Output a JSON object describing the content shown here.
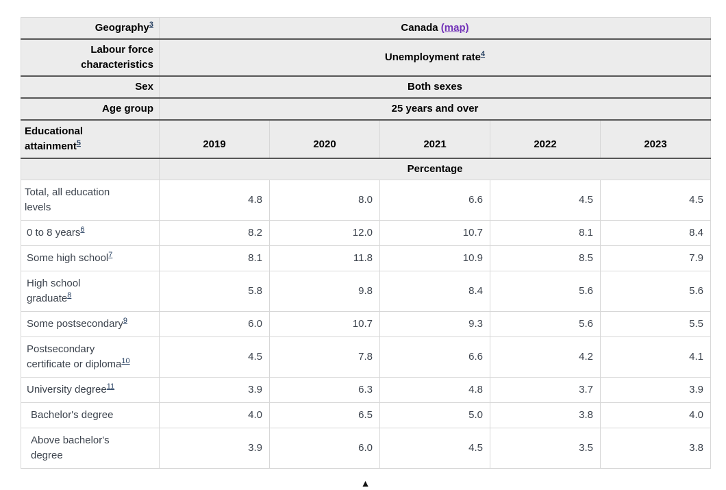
{
  "table": {
    "meta_rows": [
      {
        "label": "Geography",
        "footnote": "3",
        "value": "Canada",
        "value_link": "(map)"
      },
      {
        "label": "Labour force characteristics",
        "value": "Unemployment rate",
        "value_footnote": "4"
      },
      {
        "label": "Sex",
        "value": "Both sexes"
      },
      {
        "label": "Age group",
        "value": "25 years and over"
      }
    ],
    "column_header": {
      "label": "Educational attainment",
      "footnote": "5",
      "years": [
        "2019",
        "2020",
        "2021",
        "2022",
        "2023"
      ]
    },
    "unit_label": "Percentage",
    "rows": [
      {
        "label": "Total, all education levels",
        "values": [
          "4.8",
          "8.0",
          "6.6",
          "4.5",
          "4.5"
        ]
      },
      {
        "label": "0 to 8 years",
        "footnote": "6",
        "values": [
          "8.2",
          "12.0",
          "10.7",
          "8.1",
          "8.4"
        ]
      },
      {
        "label": "Some high school",
        "footnote": "7",
        "values": [
          "8.1",
          "11.8",
          "10.9",
          "8.5",
          "7.9"
        ]
      },
      {
        "label": "High school graduate",
        "footnote": "8",
        "values": [
          "5.8",
          "9.8",
          "8.4",
          "5.6",
          "5.6"
        ]
      },
      {
        "label": "Some postsecondary",
        "footnote": "9",
        "values": [
          "6.0",
          "10.7",
          "9.3",
          "5.6",
          "5.5"
        ]
      },
      {
        "label": "Postsecondary certificate or diploma",
        "footnote": "10",
        "values": [
          "4.5",
          "7.8",
          "6.6",
          "4.2",
          "4.1"
        ]
      },
      {
        "label": "University degree",
        "footnote": "11",
        "values": [
          "3.9",
          "6.3",
          "4.8",
          "3.7",
          "3.9"
        ]
      },
      {
        "label": "Bachelor's degree",
        "values": [
          "4.0",
          "6.5",
          "5.0",
          "3.8",
          "4.0"
        ]
      },
      {
        "label": "Above bachelor's degree",
        "values": [
          "3.9",
          "6.0",
          "4.5",
          "3.5",
          "3.8"
        ]
      }
    ]
  },
  "footer": {
    "back_to_top_icon": "▲"
  },
  "colors": {
    "header_bg": "#ececec",
    "dark_border": "#565656",
    "light_border": "#d7d7d7",
    "text": "#3c434d",
    "footnote_link": "#284162",
    "visited_link_purple": "#7232b8"
  },
  "chart_data": {
    "type": "table",
    "categories": [
      "2019",
      "2020",
      "2021",
      "2022",
      "2023"
    ],
    "unit": "Percentage",
    "series": [
      {
        "name": "Total, all education levels",
        "values": [
          4.8,
          8.0,
          6.6,
          4.5,
          4.5
        ]
      },
      {
        "name": "0 to 8 years",
        "values": [
          8.2,
          12.0,
          10.7,
          8.1,
          8.4
        ]
      },
      {
        "name": "Some high school",
        "values": [
          8.1,
          11.8,
          10.9,
          8.5,
          7.9
        ]
      },
      {
        "name": "High school graduate",
        "values": [
          5.8,
          9.8,
          8.4,
          5.6,
          5.6
        ]
      },
      {
        "name": "Some postsecondary",
        "values": [
          6.0,
          10.7,
          9.3,
          5.6,
          5.5
        ]
      },
      {
        "name": "Postsecondary certificate or diploma",
        "values": [
          4.5,
          7.8,
          6.6,
          4.2,
          4.1
        ]
      },
      {
        "name": "University degree",
        "values": [
          3.9,
          6.3,
          4.8,
          3.7,
          3.9
        ]
      },
      {
        "name": "Bachelor's degree",
        "values": [
          4.0,
          6.5,
          5.0,
          3.8,
          4.0
        ]
      },
      {
        "name": "Above bachelor's degree",
        "values": [
          3.9,
          6.0,
          4.5,
          3.5,
          3.8
        ]
      }
    ]
  }
}
